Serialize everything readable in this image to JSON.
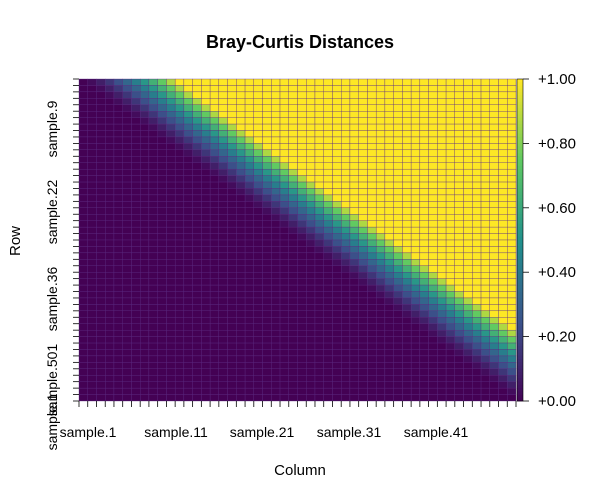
{
  "chart_data": {
    "type": "heatmap",
    "title": "Bray-Curtis Distances",
    "xlabel": "Column",
    "ylabel": "Row",
    "n_rows": 50,
    "n_cols": 50,
    "x_tick_labels": [
      "sample.1",
      "sample.11",
      "sample.21",
      "sample.31",
      "sample.41"
    ],
    "y_tick_labels": [
      "sample.9",
      "sample.22",
      "sample.36",
      "sample.501",
      "sample.1"
    ],
    "value_range": [
      0.0,
      1.0
    ],
    "colorbar_labels": [
      "+1.00",
      "+0.80",
      "+0.60",
      "+0.40",
      "+0.20",
      "+0.00"
    ],
    "colorbar_values": [
      1.0,
      0.8,
      0.6,
      0.4,
      0.2,
      0.0
    ],
    "pattern": "upper triangle: distance ramps from 0 at the diagonal to 1.00 away from it; lower triangle and diagonal 0.00",
    "palette": [
      "#440154",
      "#3b528b",
      "#21908d",
      "#5ec962",
      "#fde725"
    ],
    "cell_border_color": "#5a2a82",
    "grid": true
  }
}
